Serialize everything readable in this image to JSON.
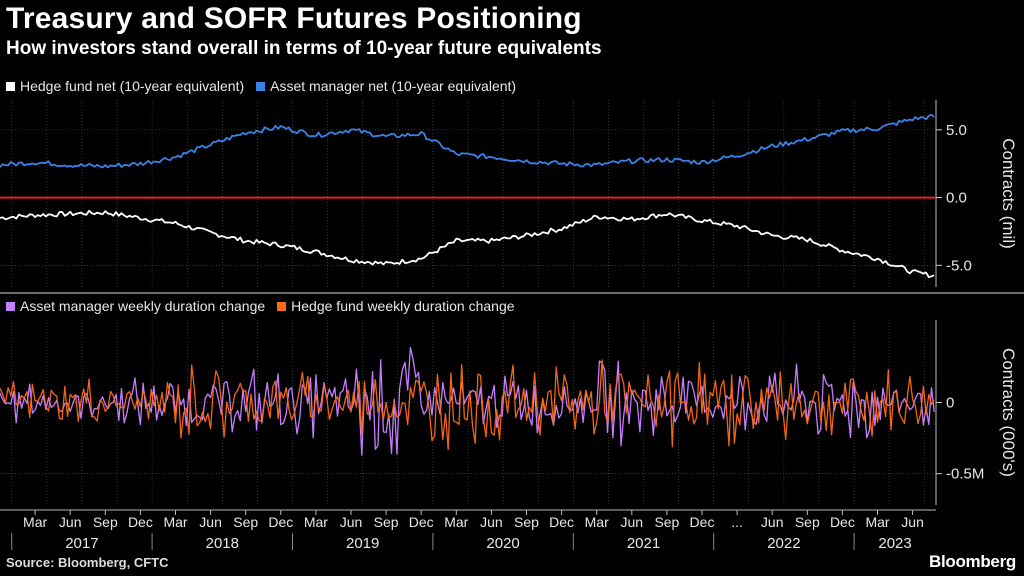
{
  "title": "Treasury and SOFR Futures Positioning",
  "subtitle": "How investors stand overall in terms of 10-year future equivalents",
  "colors": {
    "hedge_net": "#ffffff",
    "asset_net": "#3b82e6",
    "zero_line": "#e8212b",
    "asset_weekly": "#c77dff",
    "hedge_weekly": "#ff6a13",
    "grid": "#555555",
    "background": "#000000"
  },
  "footer": {
    "source": "Source: Bloomberg, CFTC",
    "brand": "Bloomberg"
  },
  "x_axis": {
    "month_ticks": [
      "Mar",
      "Jun",
      "Sep",
      "Dec",
      "Mar",
      "Jun",
      "Sep",
      "Dec",
      "Mar",
      "Jun",
      "Sep",
      "Dec",
      "Mar",
      "Jun",
      "Sep",
      "Dec",
      "Mar",
      "Jun",
      "Sep",
      "Dec",
      "...",
      "Jun",
      "Sep",
      "Dec",
      "Mar",
      "Jun"
    ],
    "year_labels": [
      "2017",
      "2018",
      "2019",
      "2020",
      "2021",
      "2022",
      "2023"
    ]
  },
  "chart_data": [
    {
      "type": "line",
      "ylabel": "Contracts (mil)",
      "ylim": [
        -6.6,
        7.2
      ],
      "yticks": [
        5.0,
        0.0,
        -5.0
      ],
      "ytick_labels": [
        "5.0",
        "0.0",
        "-5.0"
      ],
      "grid": true,
      "legend": "top-left",
      "x_range": [
        "2016-12",
        "2023-08"
      ],
      "series": [
        {
          "name": "Hedge fund net (10-year equivalent)",
          "x": [
            "2016-12",
            "2017-03",
            "2017-06",
            "2017-09",
            "2017-12",
            "2018-03",
            "2018-06",
            "2018-09",
            "2018-12",
            "2019-03",
            "2019-06",
            "2019-09",
            "2019-12",
            "2020-03",
            "2020-06",
            "2020-09",
            "2020-12",
            "2021-03",
            "2021-06",
            "2021-09",
            "2021-12",
            "2022-03",
            "2022-06",
            "2022-09",
            "2022-12",
            "2023-03",
            "2023-06",
            "2023-08"
          ],
          "values": [
            -1.5,
            -1.3,
            -1.2,
            -1.1,
            -1.5,
            -1.9,
            -2.6,
            -3.2,
            -3.5,
            -4.0,
            -4.6,
            -4.9,
            -4.5,
            -3.2,
            -3.2,
            -2.8,
            -2.3,
            -1.4,
            -1.6,
            -1.2,
            -1.7,
            -2.1,
            -2.8,
            -3.1,
            -3.9,
            -4.5,
            -5.5,
            -5.8
          ]
        },
        {
          "name": "Asset manager net (10-year equivalent)",
          "x": [
            "2016-12",
            "2017-03",
            "2017-06",
            "2017-09",
            "2017-12",
            "2018-03",
            "2018-06",
            "2018-09",
            "2018-12",
            "2019-03",
            "2019-06",
            "2019-09",
            "2019-12",
            "2020-03",
            "2020-06",
            "2020-09",
            "2020-12",
            "2021-03",
            "2021-06",
            "2021-09",
            "2021-12",
            "2022-03",
            "2022-06",
            "2022-09",
            "2022-12",
            "2023-03",
            "2023-06",
            "2023-08"
          ],
          "values": [
            2.4,
            2.6,
            2.4,
            2.3,
            2.5,
            3.0,
            3.9,
            4.8,
            5.2,
            4.6,
            5.0,
            4.5,
            4.7,
            3.2,
            3.0,
            2.7,
            2.5,
            2.4,
            2.7,
            2.8,
            2.6,
            3.1,
            3.8,
            4.3,
            4.9,
            5.1,
            5.8,
            6.0
          ]
        }
      ]
    },
    {
      "type": "line",
      "ylabel": "Contracts (000's)",
      "ylim": [
        -0.72,
        0.58
      ],
      "yticks": [
        0,
        -0.5
      ],
      "ytick_labels": [
        "0",
        "-0.5M"
      ],
      "grid": true,
      "legend": "top-left",
      "x_range": [
        "2016-12",
        "2023-08"
      ],
      "series": [
        {
          "name": "Asset manager weekly duration change",
          "x": [
            "2016-12",
            "2017-03",
            "2017-06",
            "2017-09",
            "2017-12",
            "2018-03",
            "2018-06",
            "2018-09",
            "2018-12",
            "2019-03",
            "2019-06",
            "2019-09",
            "2019-12",
            "2020-03",
            "2020-06",
            "2020-09",
            "2020-12",
            "2021-03",
            "2021-06",
            "2021-09",
            "2021-12",
            "2022-03",
            "2022-06",
            "2022-09",
            "2022-12",
            "2023-03",
            "2023-06",
            "2023-08"
          ],
          "values": [
            0.15,
            -0.1,
            0.12,
            -0.12,
            0.18,
            -0.14,
            0.2,
            -0.18,
            0.25,
            -0.2,
            0.15,
            -0.55,
            0.22,
            -0.1,
            0.18,
            -0.22,
            0.15,
            -0.12,
            0.3,
            -0.25,
            0.2,
            -0.18,
            0.25,
            -0.2,
            0.3,
            -0.15,
            0.18,
            0.17
          ]
        },
        {
          "name": "Hedge fund weekly duration change",
          "x": [
            "2016-12",
            "2017-03",
            "2017-06",
            "2017-09",
            "2017-12",
            "2018-03",
            "2018-06",
            "2018-09",
            "2018-12",
            "2019-03",
            "2019-06",
            "2019-09",
            "2019-12",
            "2020-03",
            "2020-06",
            "2020-09",
            "2020-12",
            "2021-03",
            "2021-06",
            "2021-09",
            "2021-12",
            "2022-03",
            "2022-06",
            "2022-09",
            "2022-12",
            "2023-03",
            "2023-06",
            "2023-08"
          ],
          "values": [
            -0.05,
            0.15,
            -0.18,
            0.14,
            -0.12,
            0.18,
            -0.3,
            0.22,
            -0.2,
            0.22,
            -0.18,
            0.25,
            -0.15,
            0.35,
            -0.2,
            0.28,
            -0.25,
            0.3,
            -0.22,
            0.2,
            -0.3,
            0.25,
            -0.28,
            0.22,
            -0.2,
            0.25,
            -0.18,
            -0.1
          ]
        }
      ]
    }
  ]
}
